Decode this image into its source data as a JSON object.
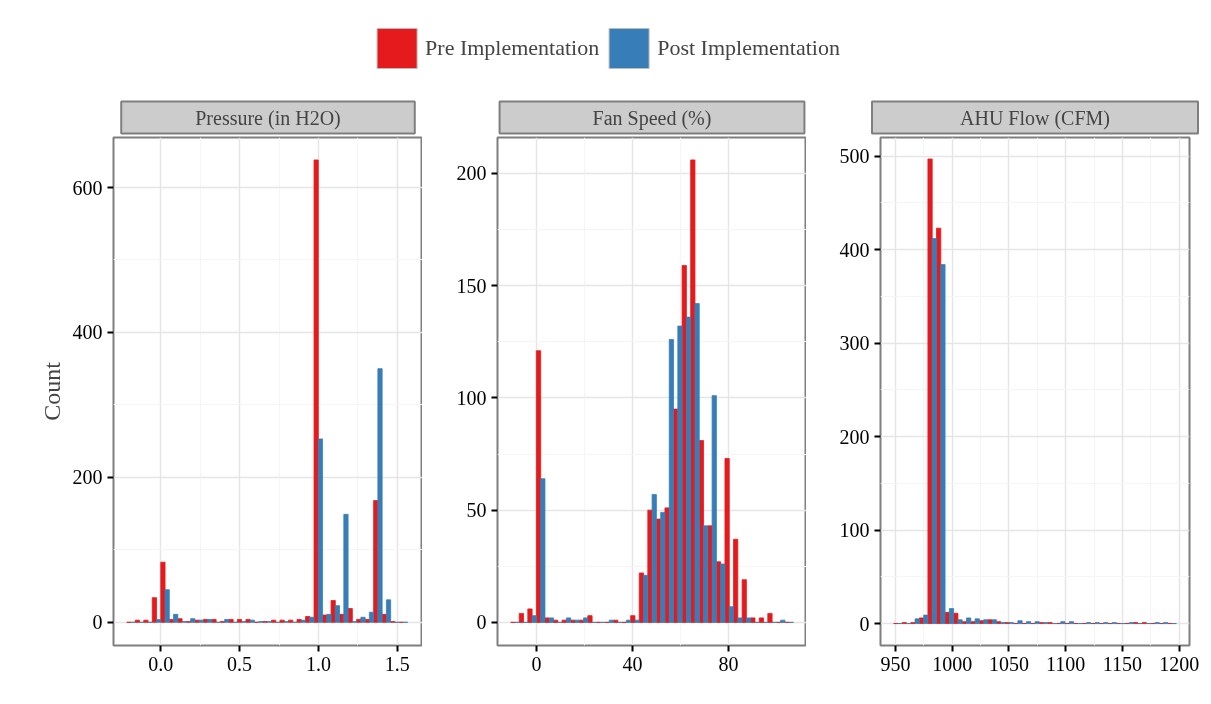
{
  "chart_data": [
    {
      "type": "histogram",
      "title": "Pressure (in H2O)",
      "ylabel": "Count",
      "legend": "top",
      "grid": true,
      "bins": [
        -0.216,
        -0.162,
        -0.108,
        -0.054,
        0,
        0.054,
        0.108,
        0.162,
        0.216,
        0.27,
        0.324,
        0.378,
        0.432,
        0.486,
        0.54,
        0.594,
        0.648,
        0.702,
        0.756,
        0.81,
        0.864,
        0.918,
        0.972,
        1.026,
        1.08,
        1.134,
        1.188,
        1.242,
        1.296,
        1.35,
        1.404,
        1.458,
        1.512,
        1.566
      ],
      "series": [
        {
          "name": "Pre Implementation",
          "color": "#e41a1c",
          "values": [
            0,
            3,
            3,
            34,
            83,
            4,
            5,
            1,
            3,
            4,
            4,
            1,
            4,
            4,
            4,
            0,
            1,
            3,
            3,
            3,
            4,
            8,
            638,
            10,
            30,
            11,
            19,
            4,
            4,
            168,
            11,
            1,
            0
          ]
        },
        {
          "name": "Post Implementation",
          "color": "#377eb8",
          "values": [
            0,
            0,
            0,
            4,
            45,
            11,
            1,
            5,
            3,
            4,
            0,
            4,
            0,
            1,
            3,
            1,
            1,
            0,
            1,
            0,
            3,
            7,
            253,
            11,
            23,
            149,
            1,
            7,
            14,
            350,
            31,
            0,
            0
          ]
        }
      ],
      "xlim": [
        -0.3,
        1.66
      ],
      "ylim": [
        -32,
        669
      ],
      "xticks": [
        {
          "value": 0,
          "label": "0.0"
        },
        0.5,
        {
          "value": 1,
          "label": "1.0"
        },
        1.5
      ],
      "yticks": [
        0,
        200,
        400,
        600
      ]
    },
    {
      "type": "histogram",
      "title": "Fan Speed (%)",
      "grid": true,
      "bins": [
        -10.71,
        -7.14,
        -3.57,
        0,
        3.57,
        7.14,
        10.71,
        14.28,
        17.85,
        21.42,
        24.99,
        28.56,
        32.13,
        35.7,
        39.27,
        42.84,
        46.41,
        49.98,
        53.55,
        57.12,
        60.69,
        64.26,
        67.83,
        71.4,
        74.97,
        78.54,
        82.11,
        85.68,
        89.25,
        92.82,
        96.39,
        99.96,
        103.53,
        107.1
      ],
      "series": [
        {
          "name": "Pre Implementation",
          "color": "#e41a1c",
          "values": [
            0,
            4,
            6,
            121,
            2,
            1,
            1,
            1,
            1,
            3,
            0,
            0,
            1,
            0,
            3,
            22,
            50,
            46,
            51,
            95,
            159,
            206,
            81,
            43,
            27,
            73,
            37,
            19,
            2,
            2,
            4,
            0,
            0
          ]
        },
        {
          "name": "Post Implementation",
          "color": "#377eb8",
          "values": [
            0,
            0,
            3,
            64,
            2,
            0,
            2,
            1,
            2,
            0,
            0,
            1,
            0,
            1,
            1,
            21,
            57,
            49,
            126,
            132,
            136,
            142,
            43,
            101,
            26,
            7,
            2,
            2,
            0,
            0,
            0,
            1,
            0
          ]
        }
      ],
      "xlim": [
        -16.2,
        112.5
      ],
      "ylim": [
        -10.3,
        216
      ],
      "xticks": [
        0,
        40,
        80
      ],
      "yticks": [
        0,
        50,
        100,
        150,
        200
      ]
    },
    {
      "type": "histogram",
      "title": "AHU Flow (CFM)",
      "grid": true,
      "bins": [
        948.4,
        955.95,
        963.5,
        971.05,
        978.6,
        986.15,
        993.7,
        1001.25,
        1008.8,
        1016.35,
        1023.9,
        1031.45,
        1039,
        1046.55,
        1054.1,
        1061.65,
        1069.2,
        1076.75,
        1084.3,
        1091.85,
        1099.4,
        1106.95,
        1114.5,
        1122.05,
        1129.6,
        1137.15,
        1144.7,
        1152.25,
        1159.8,
        1167.35,
        1174.9,
        1182.45,
        1190,
        1197.55
      ],
      "series": [
        {
          "name": "Pre Implementation",
          "color": "#e41a1c",
          "values": [
            0,
            1,
            1,
            6,
            497,
            423,
            12,
            11,
            2,
            2,
            3,
            4,
            2,
            1,
            0,
            0,
            0,
            1,
            1,
            0,
            0,
            0,
            0,
            0,
            0,
            0,
            0,
            0,
            1,
            1,
            0,
            0,
            0
          ]
        },
        {
          "name": "Post Implementation",
          "color": "#377eb8",
          "values": [
            0,
            0,
            5,
            9,
            412,
            384,
            16,
            4,
            6,
            5,
            4,
            4,
            1,
            1,
            3,
            2,
            2,
            1,
            0,
            2,
            2,
            0,
            1,
            1,
            1,
            1,
            0,
            1,
            0,
            0,
            1,
            1,
            0
          ]
        }
      ],
      "xlim": [
        936.8,
        1209.1
      ],
      "ylim": [
        -23.5,
        520
      ],
      "xticks": [
        950,
        1000,
        1050,
        1100,
        1150,
        1200
      ],
      "yticks": [
        0,
        100,
        200,
        300,
        400,
        500
      ]
    }
  ]
}
